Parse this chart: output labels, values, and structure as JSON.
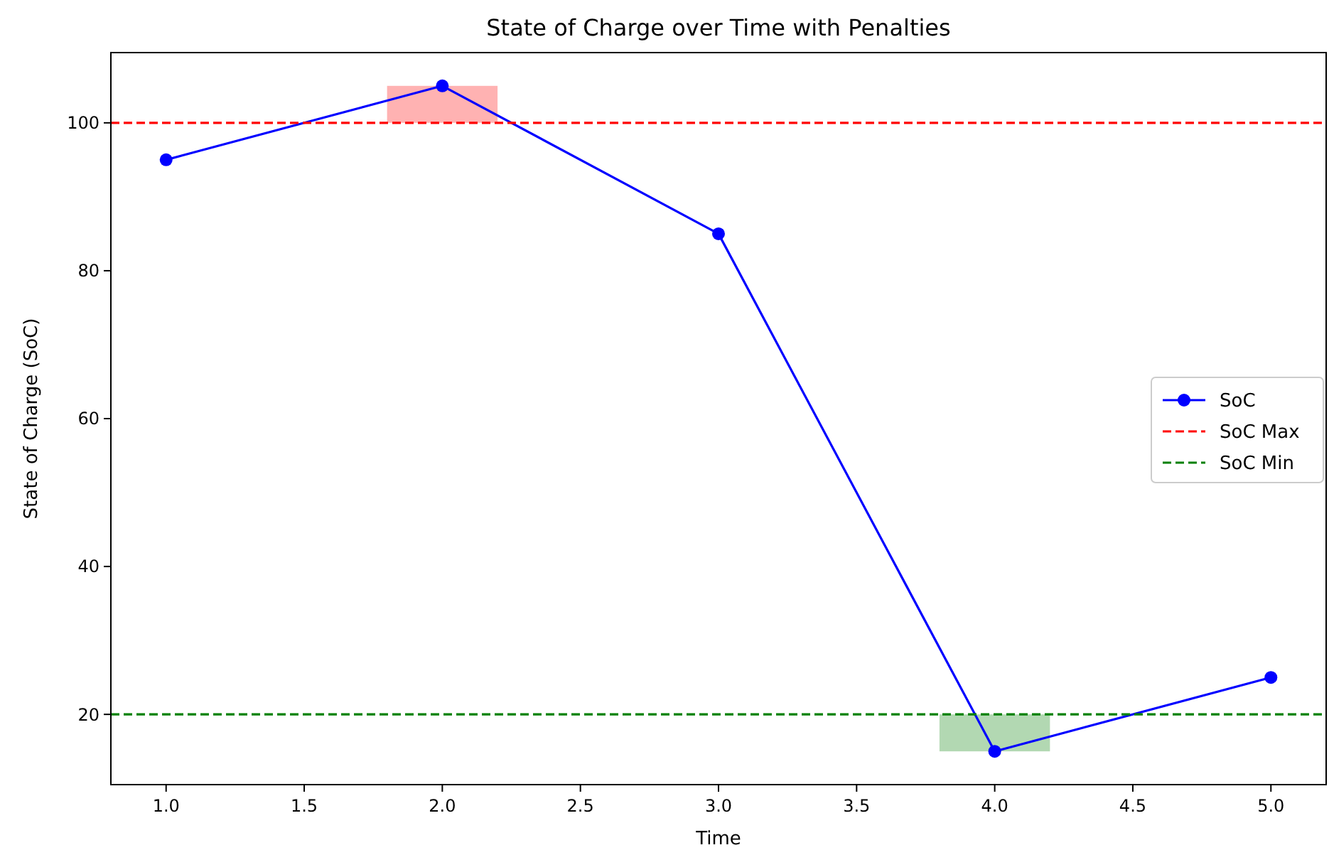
{
  "chart_data": {
    "type": "line",
    "title": "State of Charge over Time with Penalties",
    "xlabel": "Time",
    "ylabel": "State of Charge (SoC)",
    "xlim": [
      0.8,
      5.2
    ],
    "xticks": [
      {
        "value": 1,
        "label": "1.0"
      },
      {
        "value": 1.5,
        "label": "1.5"
      },
      {
        "value": 2,
        "label": "2.0"
      },
      {
        "value": 2.5,
        "label": "2.5"
      },
      {
        "value": 3,
        "label": "3.0"
      },
      {
        "value": 3.5,
        "label": "3.5"
      },
      {
        "value": 4,
        "label": "4.0"
      },
      {
        "value": 4.5,
        "label": "4.5"
      },
      {
        "value": 5,
        "label": "5.0"
      }
    ],
    "ylim": [
      10.5,
      109.5
    ],
    "yticks": [
      20,
      40,
      60,
      80,
      100
    ],
    "series": [
      {
        "type": "bar",
        "x": [
          2,
          4
        ],
        "base": [
          100,
          15
        ],
        "values": [
          5,
          5
        ],
        "colors": [
          "#ffb2b2",
          "#b2d8b2"
        ]
      },
      {
        "name": "SoC",
        "color": "#0000ff",
        "x": [
          1,
          2,
          3,
          4,
          5
        ],
        "values": [
          95,
          105,
          85,
          15,
          25
        ],
        "marker": "circle"
      }
    ],
    "ref_lines": [
      {
        "axis": "y",
        "value": 100,
        "label": "SoC Max",
        "color": "#ff0000",
        "line_style": "dashed"
      },
      {
        "axis": "y",
        "value": 20,
        "label": "SoC Min",
        "color": "#008000",
        "line_style": "dashed"
      }
    ],
    "legend": "right",
    "grid": false
  }
}
